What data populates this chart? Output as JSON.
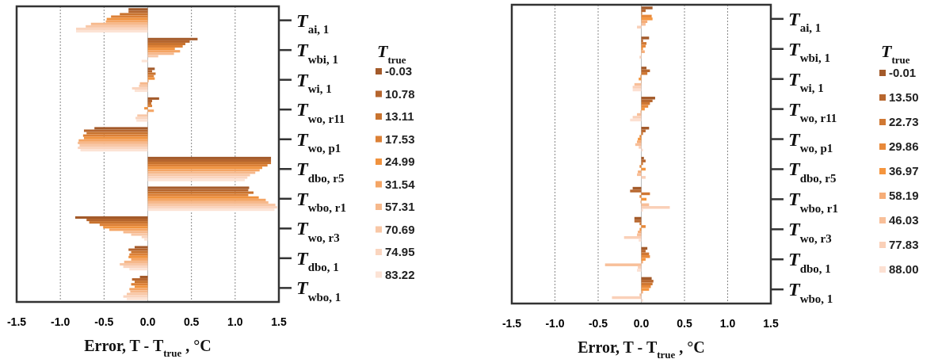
{
  "chart_data": [
    {
      "type": "bar",
      "orientation": "horizontal",
      "xlabel": "Error, T - T$_{true}$ , °C",
      "legend_title": "T$_{true}$",
      "legend": "right",
      "grid": "x",
      "categories": [
        "T$_{ai, 1}$",
        "T$_{wbi, 1}$",
        "T$_{wi, 1}$",
        "T$_{wo, r11}$",
        "T$_{wo, p1}$",
        "T$_{dbo, r5}$",
        "T$_{wbo, r1}$",
        "T$_{wo, r3}$",
        "T$_{dbo, 1}$",
        "T$_{wbo, 1}$"
      ],
      "xlim": [
        -1.5,
        1.5
      ],
      "xticks": [
        -1.5,
        {
          "value": -1,
          "label": "-1.0"
        },
        -0.5,
        {
          "value": 0,
          "label": "0.0"
        },
        0.5,
        {
          "value": 1,
          "label": "1.0"
        },
        1.5
      ],
      "series": [
        {
          "name": "-0.03",
          "color": "#a35a2a",
          "values": [
            -0.22,
            0.57,
            0.08,
            0.13,
            -0.61,
            1.41,
            1.16,
            -0.83,
            -0.15,
            -0.09
          ]
        },
        {
          "name": "10.78",
          "color": "#b5652e",
          "values": [
            -0.22,
            0.48,
            0.05,
            0.05,
            -0.73,
            1.41,
            1.15,
            -0.7,
            -0.22,
            -0.18
          ]
        },
        {
          "name": "13.11",
          "color": "#c8732f",
          "values": [
            -0.32,
            0.43,
            0.09,
            0.04,
            -0.7,
            1.41,
            1.21,
            -0.67,
            -0.19,
            -0.15
          ]
        },
        {
          "name": "17.53",
          "color": "#dc8036",
          "values": [
            -0.42,
            0.4,
            0.07,
            0.05,
            -0.74,
            1.37,
            1.15,
            -0.55,
            -0.21,
            -0.19
          ]
        },
        {
          "name": "24.99",
          "color": "#f0923e",
          "values": [
            -0.47,
            0.31,
            0.08,
            -0.04,
            -0.73,
            1.31,
            1.27,
            -0.51,
            -0.22,
            -0.15
          ]
        },
        {
          "name": "31.54",
          "color": "#f4a565",
          "values": [
            -0.48,
            0.37,
            0.01,
            0.07,
            -0.79,
            1.28,
            1.35,
            -0.44,
            -0.19,
            -0.21
          ]
        },
        {
          "name": "57.31",
          "color": "#f6b88b",
          "values": [
            -0.65,
            0.3,
            -0.09,
            -0.01,
            -0.8,
            1.23,
            1.38,
            -0.28,
            -0.27,
            -0.2
          ]
        },
        {
          "name": "70.69",
          "color": "#f8c7a6",
          "values": [
            -0.71,
            0.12,
            -0.1,
            -0.12,
            -0.78,
            1.17,
            1.46,
            -0.19,
            -0.32,
            -0.24
          ]
        },
        {
          "name": "74.95",
          "color": "#fad5bf",
          "values": [
            -0.82,
            null,
            -0.18,
            -0.14,
            -0.8,
            1.14,
            1.48,
            -0.07,
            -0.28,
            -0.28
          ]
        },
        {
          "name": "83.22",
          "color": "#fce3d5",
          "values": [
            -0.82,
            -0.07,
            -0.15,
            -0.13,
            -0.77,
            1.11,
            1.45,
            -0.04,
            -0.21,
            -0.24
          ]
        }
      ]
    },
    {
      "type": "bar",
      "orientation": "horizontal",
      "xlabel": "Error, T - T$_{true}$ , °C",
      "legend_title": "T$_{true}$",
      "legend": "right",
      "grid": "x",
      "categories": [
        "T$_{ai, 1}$",
        "T$_{wbi, 1}$",
        "T$_{wi, 1}$",
        "T$_{wo, r11}$",
        "T$_{wo, p1}$",
        "T$_{dbo, r5}$",
        "T$_{wbo, r1}$",
        "T$_{wo, r3}$",
        "T$_{dbo, 1}$",
        "T$_{wbo, 1}$"
      ],
      "xlim": [
        -1.5,
        1.5
      ],
      "xticks": [
        -1.5,
        {
          "value": -1,
          "label": "-1.0"
        },
        -0.5,
        {
          "value": 0,
          "label": "0.0"
        },
        0.5,
        {
          "value": 1,
          "label": "1.0"
        },
        1.5
      ],
      "series": [
        {
          "name": "-0.01",
          "color": "#a35a2a",
          "values": [
            0.13,
            0.09,
            0.06,
            0.16,
            0.09,
            0.03,
            -0.1,
            -0.08,
            0.07,
            0.12
          ]
        },
        {
          "name": "13.50",
          "color": "#b8672e",
          "values": [
            0.05,
            0.02,
            0.1,
            0.13,
            0.05,
            0.05,
            -0.13,
            -0.08,
            0.05,
            0.14
          ]
        },
        {
          "name": "22.73",
          "color": "#d07833",
          "values": [
            0.01,
            0.06,
            0.07,
            0.1,
            0.02,
            0.02,
            0.1,
            -0.02,
            0.09,
            0.13
          ]
        },
        {
          "name": "29.86",
          "color": "#e8893a",
          "values": [
            0.12,
            0.05,
            -0.01,
            0.08,
            -0.02,
            -0.02,
            -0.02,
            0.05,
            0.1,
            0.11
          ]
        },
        {
          "name": "36.97",
          "color": "#f5953e",
          "values": [
            0.13,
            0.02,
            -0.03,
            0.04,
            -0.04,
            0.05,
            0.06,
            -0.02,
            0.05,
            0.09
          ]
        },
        {
          "name": "58.19",
          "color": "#f6ad78",
          "values": [
            0.07,
            0.04,
            0,
            -0.01,
            -0.05,
            -0.04,
            -0.01,
            -0.04,
            0.02,
            0.02
          ]
        },
        {
          "name": "46.03",
          "color": "#f8bf99",
          "values": [
            0.05,
            0,
            -0.08,
            -0.05,
            -0.07,
            -0.05,
            0.09,
            -0.05,
            -0.42,
            -0.02
          ]
        },
        {
          "name": "77.83",
          "color": "#fad0b8",
          "values": [
            -0.05,
            -0.02,
            -0.1,
            -0.1,
            -0.03,
            0.05,
            0.33,
            -0.2,
            -0.04,
            -0.34
          ]
        },
        {
          "name": "88.00",
          "color": "#fce0d2",
          "values": [
            null,
            null,
            -0.1,
            -0.13,
            0.02,
            null,
            0.02,
            -0.03,
            -0.05,
            0.02
          ]
        }
      ]
    }
  ]
}
